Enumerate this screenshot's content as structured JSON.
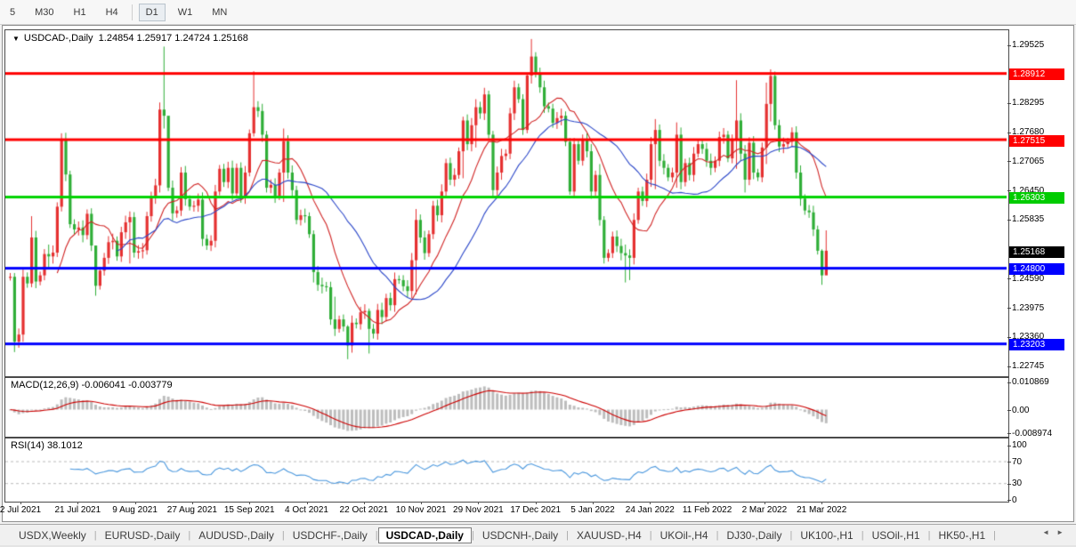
{
  "toolbar": {
    "buttons": [
      {
        "label": "5",
        "active": false
      },
      {
        "label": "M30",
        "active": false
      },
      {
        "label": "H1",
        "active": false
      },
      {
        "label": "H4",
        "active": false
      },
      {
        "label": "D1",
        "active": true
      },
      {
        "label": "W1",
        "active": false
      },
      {
        "label": "MN",
        "active": false
      }
    ],
    "separator_after_index": 3
  },
  "legend": {
    "dropdown_icon": "▼",
    "symbol": "USDCAD-,Daily",
    "ohlc": "1.24854 1.25917 1.24724 1.25168"
  },
  "macd_panel": {
    "label": "MACD(12,26,9) -0.006041 -0.003779",
    "axis": [
      {
        "text": "0.010869",
        "value": 0.010869
      },
      {
        "text": "0.00",
        "value": 0
      },
      {
        "text": "-0.008974",
        "value": -0.008974
      }
    ]
  },
  "rsi_panel": {
    "label": "RSI(14) 38.1012",
    "axis": [
      {
        "text": "100",
        "value": 100
      },
      {
        "text": "70",
        "value": 70
      },
      {
        "text": "30",
        "value": 30
      },
      {
        "text": "0",
        "value": 0
      }
    ]
  },
  "price_axis": {
    "ticks": [
      1.29525,
      1.28295,
      1.2768,
      1.27065,
      1.2645,
      1.25835,
      1.2459,
      1.23975,
      1.2336,
      1.22745
    ],
    "tags": [
      {
        "text": "1.28912",
        "price": 1.28912,
        "bg": "#ff0000"
      },
      {
        "text": "1.27515",
        "price": 1.27515,
        "bg": "#ff0000"
      },
      {
        "text": "1.26303",
        "price": 1.26303,
        "bg": "#00cc00"
      },
      {
        "text": "1.25168",
        "price": 1.25168,
        "bg": "#000000"
      },
      {
        "text": "1.24800",
        "price": 1.248,
        "bg": "#0000ff"
      },
      {
        "text": "1.23203",
        "price": 1.23203,
        "bg": "#0000ff"
      }
    ]
  },
  "tabs": {
    "items": [
      "USDX,Weekly",
      "EURUSD-,Daily",
      "AUDUSD-,Daily",
      "USDCHF-,Daily",
      "USDCAD-,Daily",
      "USDCNH-,Daily",
      "XAUUSD-,H4",
      "UKOil-,H4",
      "DJ30-,Daily",
      "UK100-,H1",
      "USOil-,H1",
      "HK50-,H1"
    ],
    "active_index": 4,
    "scroll_left_icon": "◄",
    "scroll_right_icon": "►"
  },
  "chart_data": {
    "type": "candlestick",
    "symbol": "USDCAD",
    "timeframe": "Daily",
    "current_bar": {
      "open": 1.24854,
      "high": 1.25917,
      "low": 1.24724,
      "close": 1.25168
    },
    "colors": {
      "bull": "#e53030",
      "bear": "#2fae37",
      "ma_fast": "#d02424",
      "ma_slow": "#2a46c8",
      "macd_hist": "#bdbdbd",
      "macd_signal": "#cc0000",
      "rsi_line": "#4a97dd",
      "rsi_levels": "#b9b9b9"
    },
    "levels": [
      {
        "price": 1.28912,
        "color": "#ff0000"
      },
      {
        "price": 1.27515,
        "color": "#ff0000"
      },
      {
        "price": 1.26303,
        "color": "#00d300"
      },
      {
        "price": 1.248,
        "color": "#0000ff"
      },
      {
        "price": 1.23203,
        "color": "#0000ff"
      }
    ],
    "moving_averages": [
      {
        "period": 12,
        "color": "#d02424"
      },
      {
        "period": 26,
        "color": "#2a46c8"
      }
    ],
    "macd": {
      "fast": 12,
      "slow": 26,
      "signal": 9,
      "current_macd": -0.006041,
      "current_signal": -0.003779,
      "scale_top": 0.010869,
      "scale_bottom": -0.008974
    },
    "rsi": {
      "period": 14,
      "current": 38.1012,
      "levels": [
        70,
        30
      ],
      "range": [
        0,
        100
      ]
    },
    "dates": [
      "2 Jul 2021",
      "21 Jul 2021",
      "9 Aug 2021",
      "27 Aug 2021",
      "15 Sep 2021",
      "4 Oct 2021",
      "22 Oct 2021",
      "10 Nov 2021",
      "29 Nov 2021",
      "17 Dec 2021",
      "5 Jan 2022",
      "24 Jan 2022",
      "11 Feb 2022",
      "2 Mar 2022",
      "21 Mar 2022"
    ],
    "price_range_note": "y-axis spans approx 1.2257 to 1.2984",
    "candles": [
      [
        1.2462
      ],
      [
        1.2325,
        1.247,
        1.2303
      ],
      [
        1.234
      ],
      [
        1.2462
      ],
      [
        1.2448
      ],
      [
        1.2545,
        1.259,
        1.244
      ],
      [
        1.2452
      ],
      [
        1.2465
      ],
      [
        1.251
      ],
      [
        1.2505,
        1.253,
        1.248
      ],
      [
        1.2513
      ],
      [
        1.261
      ],
      [
        1.2752,
        1.2765,
        1.26
      ],
      [
        1.2678
      ],
      [
        1.2573
      ],
      [
        1.2562
      ],
      [
        1.2566
      ],
      [
        1.255
      ],
      [
        1.2595
      ],
      [
        1.2528
      ],
      [
        1.2443,
        1.245,
        1.2422
      ],
      [
        1.2475
      ],
      [
        1.2502
      ],
      [
        1.2535
      ],
      [
        1.2538
      ],
      [
        1.2505
      ],
      [
        1.2556
      ],
      [
        1.2577
      ],
      [
        1.2588,
        1.26,
        1.249
      ],
      [
        1.2513
      ],
      [
        1.2516
      ],
      [
        1.2518
      ],
      [
        1.259
      ],
      [
        1.263
      ],
      [
        1.2655
      ],
      [
        1.2815,
        1.283,
        1.264
      ],
      [
        1.2802,
        1.2948,
        1.2775
      ],
      [
        1.265,
        1.28,
        1.2643
      ],
      [
        1.2596
      ],
      [
        1.2602
      ],
      [
        1.2682
      ],
      [
        1.2626
      ],
      [
        1.261
      ],
      [
        1.2612
      ],
      [
        1.2625
      ],
      [
        1.2542
      ],
      [
        1.2528
      ],
      [
        1.2538
      ],
      [
        1.2642
      ],
      [
        1.269
      ],
      [
        1.2662
      ],
      [
        1.2692
      ],
      [
        1.2638
      ],
      [
        1.2692
      ],
      [
        1.263
      ],
      [
        1.2682
      ],
      [
        1.2765
      ],
      [
        1.282,
        1.2896,
        1.2758
      ],
      [
        1.2812
      ],
      [
        1.2762
      ],
      [
        1.265,
        1.277,
        1.264
      ],
      [
        1.2656
      ],
      [
        1.2632
      ],
      [
        1.2682
      ],
      [
        1.2748,
        1.2775,
        1.262
      ],
      [
        1.2682
      ],
      [
        1.2645
      ],
      [
        1.2582
      ],
      [
        1.2592
      ],
      [
        1.259
      ],
      [
        1.2552
      ],
      [
        1.2472,
        1.256,
        1.245
      ],
      [
        1.2445
      ],
      [
        1.2442
      ],
      [
        1.244
      ],
      [
        1.2372
      ],
      [
        1.2352,
        1.242,
        1.2337
      ],
      [
        1.2372
      ],
      [
        1.2357
      ],
      [
        1.2317,
        1.236,
        1.2288
      ],
      [
        1.2365
      ],
      [
        1.2362
      ],
      [
        1.2387
      ],
      [
        1.239
      ],
      [
        1.2352,
        1.2395,
        1.23
      ],
      [
        1.2342
      ],
      [
        1.2392
      ],
      [
        1.2377
      ],
      [
        1.2417
      ],
      [
        1.2402
      ],
      [
        1.2457
      ],
      [
        1.2455
      ],
      [
        1.2442
      ],
      [
        1.2432
      ],
      [
        1.2497
      ],
      [
        1.2582,
        1.2605,
        1.2425
      ],
      [
        1.2545
      ],
      [
        1.2512
      ],
      [
        1.2552
      ],
      [
        1.2612
      ],
      [
        1.2592
      ],
      [
        1.2642
      ],
      [
        1.2702
      ],
      [
        1.2667
      ],
      [
        1.2677
      ],
      [
        1.2727
      ],
      [
        1.2792,
        1.28,
        1.267
      ],
      [
        1.2742
      ],
      [
        1.2782
      ],
      [
        1.282,
        1.2837,
        1.2735
      ],
      [
        1.2807
      ],
      [
        1.2847
      ],
      [
        1.2762
      ],
      [
        1.2645,
        1.277,
        1.263
      ],
      [
        1.2682
      ],
      [
        1.2717
      ],
      [
        1.2722
      ],
      [
        1.2807
      ],
      [
        1.2862
      ],
      [
        1.2837
      ],
      [
        1.2772
      ],
      [
        1.2887,
        1.289,
        1.2765
      ],
      [
        1.2927,
        1.2964,
        1.287
      ],
      [
        1.2892
      ],
      [
        1.2862
      ],
      [
        1.2822
      ],
      [
        1.2817
      ],
      [
        1.2787
      ],
      [
        1.2797
      ],
      [
        1.2802
      ],
      [
        1.2747
      ],
      [
        1.2642,
        1.2755,
        1.2635
      ],
      [
        1.2742,
        1.2755,
        1.263
      ],
      [
        1.2707
      ],
      [
        1.2752
      ],
      [
        1.2727
      ],
      [
        1.2642
      ],
      [
        1.2677
      ],
      [
        1.2582,
        1.27,
        1.257
      ],
      [
        1.2502,
        1.259,
        1.249
      ],
      [
        1.2512
      ],
      [
        1.2547
      ],
      [
        1.2527
      ],
      [
        1.2512
      ],
      [
        1.2507,
        1.253,
        1.245
      ],
      [
        1.2502,
        1.252,
        1.2455
      ],
      [
        1.2582
      ],
      [
        1.2642
      ],
      [
        1.2622
      ],
      [
        1.2667
      ],
      [
        1.2742
      ],
      [
        1.2772,
        1.2795,
        1.2647
      ],
      [
        1.2707
      ],
      [
        1.2692
      ],
      [
        1.2672
      ],
      [
        1.2682
      ],
      [
        1.2762,
        1.2788,
        1.265
      ],
      [
        1.2662
      ],
      [
        1.2702
      ],
      [
        1.2677
      ],
      [
        1.2722
      ],
      [
        1.2742
      ],
      [
        1.2732
      ],
      [
        1.2707
      ],
      [
        1.2692
      ],
      [
        1.2707
      ],
      [
        1.2757
      ],
      [
        1.2762
      ],
      [
        1.2712
      ],
      [
        1.2752
      ],
      [
        1.2792,
        1.2877,
        1.269
      ],
      [
        1.2722
      ],
      [
        1.2667,
        1.274,
        1.264
      ],
      [
        1.2745
      ],
      [
        1.2682
      ],
      [
        1.2672
      ],
      [
        1.2735
      ],
      [
        1.2827,
        1.2872,
        1.27
      ],
      [
        1.2886,
        1.29,
        1.279
      ],
      [
        1.2782
      ],
      [
        1.2737
      ],
      [
        1.2742
      ],
      [
        1.2747
      ],
      [
        1.2767
      ],
      [
        1.2682
      ],
      [
        1.2627
      ],
      [
        1.2602
      ],
      [
        1.2598
      ],
      [
        1.2562
      ],
      [
        1.2517
      ],
      [
        1.2465,
        1.252,
        1.2445
      ],
      [
        1.2517,
        1.256,
        1.2472
      ]
    ]
  }
}
